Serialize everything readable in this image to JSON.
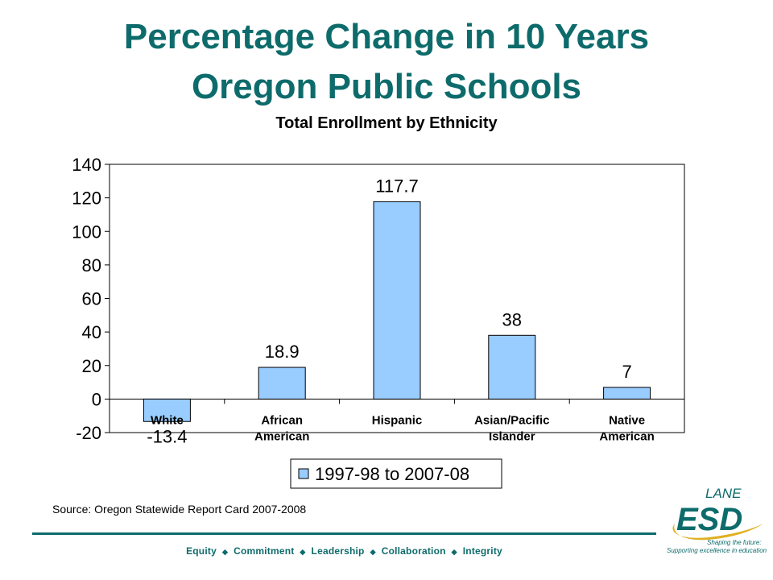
{
  "slide": {
    "title_line1": "Percentage Change in 10 Years",
    "title_line2": "Oregon Public Schools",
    "source": "Source: Oregon Statewide Report Card 2007-2008",
    "values": [
      "Equity",
      "Commitment",
      "Leadership",
      "Collaboration",
      "Integrity"
    ],
    "logo": {
      "name": "LANE",
      "mark": "ESD",
      "tagline1": "Shaping the future:",
      "tagline2": "Supporting excellence in education"
    }
  },
  "colors": {
    "title": "#0e6b6b",
    "bar_fill": "#99ccff",
    "bar_stroke": "#000000"
  },
  "chart_data": {
    "type": "bar",
    "title": "Total Enrollment by Ethnicity",
    "categories": [
      "White",
      "African American",
      "Hispanic",
      "Asian/Pacific Islander",
      "Native American"
    ],
    "category_lines": [
      [
        "White"
      ],
      [
        "African",
        "American"
      ],
      [
        "Hispanic"
      ],
      [
        "Asian/Pacific",
        "Islander"
      ],
      [
        "Native",
        "American"
      ]
    ],
    "series": [
      {
        "name": "1997-98 to 2007-08",
        "values": [
          -13.4,
          18.9,
          117.7,
          38,
          7
        ]
      }
    ],
    "value_labels": [
      "-13.4",
      "18.9",
      "117.7",
      "38",
      "7"
    ],
    "ylim": [
      -20,
      140
    ],
    "yticks": [
      140,
      120,
      100,
      80,
      60,
      40,
      20,
      0,
      -20
    ],
    "legend_position": "bottom-center",
    "grid": false
  }
}
